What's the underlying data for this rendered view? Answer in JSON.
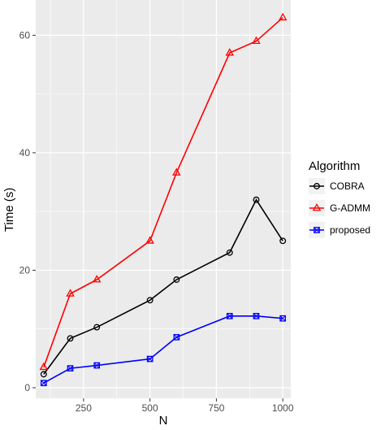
{
  "chart_data": {
    "type": "line",
    "xlabel": "N",
    "ylabel": "Time (s)",
    "xlim": [
      70,
      1030
    ],
    "ylim": [
      -1.8,
      66
    ],
    "x_ticks": [
      250,
      500,
      750,
      1000
    ],
    "y_ticks": [
      0,
      20,
      40,
      60
    ],
    "grid": true,
    "legend": {
      "title": "Algorithm",
      "placement": "right"
    },
    "series": [
      {
        "name": "COBRA",
        "color": "#000000",
        "marker": "circle",
        "x": [
          100,
          200,
          300,
          500,
          600,
          800,
          900,
          1000
        ],
        "values": [
          2.3,
          8.4,
          10.3,
          14.9,
          18.4,
          23.0,
          32.0,
          25.0
        ]
      },
      {
        "name": "G-ADMM",
        "color": "#ff0000",
        "marker": "triangle",
        "x": [
          100,
          200,
          300,
          500,
          600,
          800,
          900,
          1000
        ],
        "values": [
          3.5,
          16.0,
          18.4,
          25.0,
          36.6,
          57.0,
          59.0,
          63.0
        ]
      },
      {
        "name": "proposed",
        "color": "#0000ff",
        "marker": "square-x",
        "x": [
          100,
          200,
          300,
          500,
          600,
          800,
          900,
          1000
        ],
        "values": [
          0.8,
          3.3,
          3.8,
          4.9,
          8.6,
          12.2,
          12.2,
          11.8
        ]
      }
    ]
  }
}
